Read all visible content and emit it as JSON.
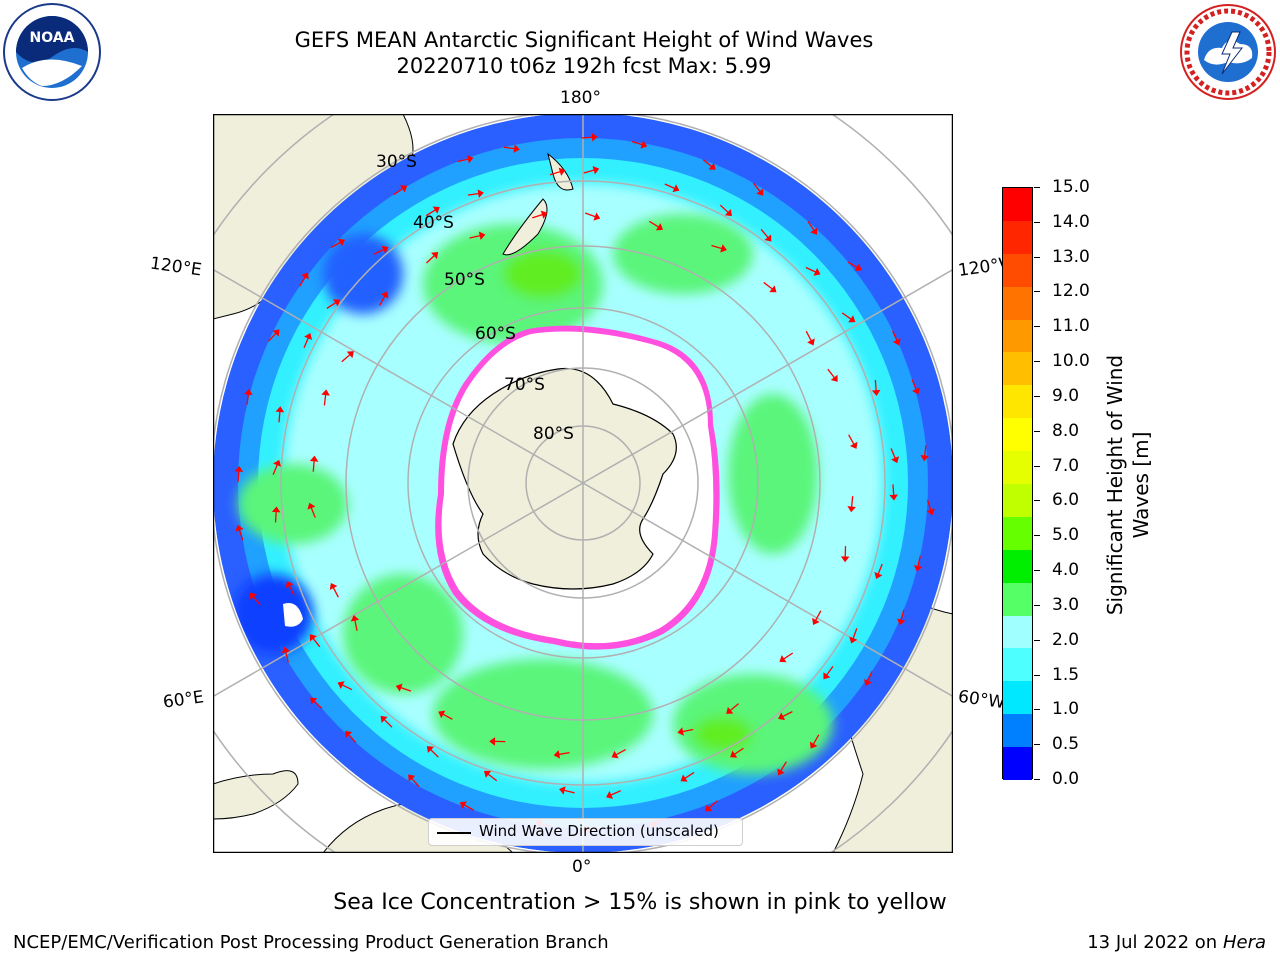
{
  "header": {
    "title_line1": "GEFS MEAN Antarctic Significant Height of Wind Waves",
    "title_line2": "20220710 t06z 192h fcst   Max: 5.99"
  },
  "logos": {
    "noaa_text": "NOAA",
    "nws_text": "NATIONAL WEATHER SERVICE"
  },
  "map": {
    "lon_labels": {
      "top": "180°",
      "bottom": "0°",
      "upper_left": "120°E",
      "upper_right": "120°W",
      "lower_left": "60°E",
      "lower_right": "60°W"
    },
    "lat_labels": [
      "30°S",
      "40°S",
      "50°S",
      "60°S",
      "70°S",
      "80°S"
    ],
    "legend_label": "Wind Wave Direction (unscaled)"
  },
  "colorbar": {
    "label": "Significant Height of Wind Waves [m]",
    "label_line1": "Significant Height of Wind",
    "label_line2": "Waves [m]",
    "ticks": [
      "15.0",
      "14.0",
      "13.0",
      "12.0",
      "11.0",
      "10.0",
      "9.0",
      "8.0",
      "7.0",
      "6.0",
      "5.0",
      "4.0",
      "3.0",
      "2.0",
      "1.5",
      "1.0",
      "0.5",
      "0.0"
    ],
    "colors_top_to_bottom": [
      "#ff0000",
      "#ff2600",
      "#ff4c00",
      "#ff7300",
      "#ff9900",
      "#ffbf00",
      "#ffe600",
      "#ffff00",
      "#e6ff00",
      "#c0ff00",
      "#66ff00",
      "#00ee00",
      "#55ff66",
      "#a0ffff",
      "#4dffff",
      "#00e8ff",
      "#0080ff",
      "#0000ff"
    ]
  },
  "notes": {
    "sea_ice": "Sea Ice Concentration > 15% is shown in pink to yellow"
  },
  "footer": {
    "left": "NCEP/EMC/Verification Post Processing Product Generation Branch",
    "right_prefix": "13 Jul 2022 on ",
    "right_machine": "Hera"
  }
}
